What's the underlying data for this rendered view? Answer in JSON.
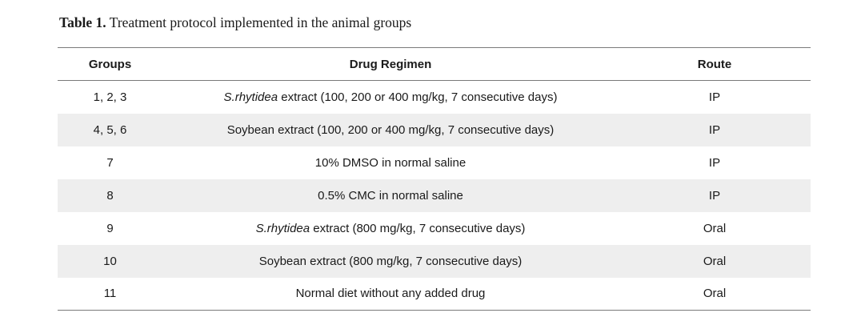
{
  "caption": {
    "label": "Table 1.",
    "text": "Treatment protocol implemented in the animal groups"
  },
  "table": {
    "headers": {
      "groups": "Groups",
      "regimen": "Drug Regimen",
      "route": "Route"
    },
    "rows": [
      {
        "groups": "1, 2, 3",
        "regimen_italic": "S.rhytidea",
        "regimen": " extract (100, 200 or 400 mg/kg, 7 consecutive days)",
        "route": "IP",
        "shaded": false
      },
      {
        "groups": "4, 5, 6",
        "regimen_italic": "",
        "regimen": "Soybean extract (100, 200 or 400 mg/kg, 7 consecutive days)",
        "route": "IP",
        "shaded": true
      },
      {
        "groups": "7",
        "regimen_italic": "",
        "regimen": "10% DMSO in normal saline",
        "route": "IP",
        "shaded": false
      },
      {
        "groups": "8",
        "regimen_italic": "",
        "regimen": "0.5% CMC in normal saline",
        "route": "IP",
        "shaded": true
      },
      {
        "groups": "9",
        "regimen_italic": "S.rhytidea",
        "regimen": " extract (800 mg/kg, 7 consecutive days)",
        "route": "Oral",
        "shaded": false
      },
      {
        "groups": "10",
        "regimen_italic": "",
        "regimen": "Soybean extract (800 mg/kg, 7 consecutive days)",
        "route": "Oral",
        "shaded": true
      },
      {
        "groups": "11",
        "regimen_italic": "",
        "regimen": "Normal diet without any added drug",
        "route": "Oral",
        "shaded": false
      }
    ]
  },
  "colors": {
    "row_shade": "#eeeeee",
    "rule": "#7a7a7a"
  }
}
